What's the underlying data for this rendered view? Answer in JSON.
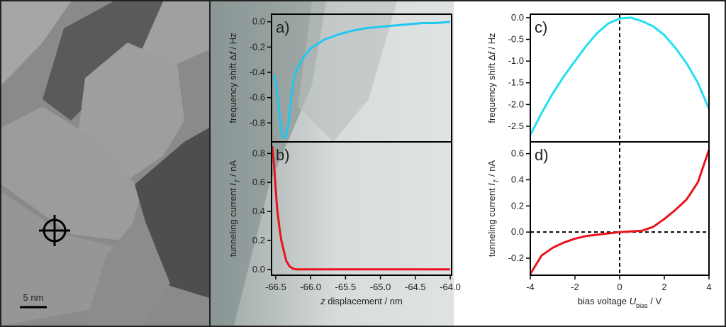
{
  "image": {
    "scale_label": "5 nm"
  },
  "chart_data": [
    {
      "type": "line",
      "panel_label": "a)",
      "ylabel": [
        "frequency shift  Δ",
        "f",
        " / Hz"
      ],
      "x": [
        -66.52,
        -66.48,
        -66.44,
        -66.4,
        -66.36,
        -66.32,
        -66.28,
        -66.24,
        -66.2,
        -66.1,
        -66.0,
        -65.8,
        -65.6,
        -65.4,
        -65.2,
        -65.0,
        -64.8,
        -64.6,
        -64.4,
        -64.2,
        -64.0
      ],
      "series": [
        {
          "color": "#22c6f0",
          "values": [
            -0.42,
            -0.55,
            -0.78,
            -0.91,
            -0.92,
            -0.82,
            -0.6,
            -0.45,
            -0.38,
            -0.28,
            -0.21,
            -0.14,
            -0.1,
            -0.07,
            -0.05,
            -0.04,
            -0.03,
            -0.02,
            -0.01,
            -0.01,
            0.0
          ]
        }
      ],
      "xlim": [
        -66.56,
        -63.98
      ],
      "ylim": [
        -0.95,
        0.06
      ],
      "yticks": [
        {
          "value": 0,
          "label": "0.0"
        },
        -0.2,
        -0.4,
        -0.6,
        -0.8
      ]
    },
    {
      "type": "line",
      "panel_label": "b)",
      "ylabel": [
        "tunneling current ",
        "I",
        "T",
        " / nA"
      ],
      "xlabel": [
        "z",
        " displacement / nm"
      ],
      "x": [
        -66.55,
        -66.52,
        -66.5,
        -66.48,
        -66.45,
        -66.42,
        -66.38,
        -66.35,
        -66.3,
        -66.25,
        -66.2,
        -66.0,
        -65.5,
        -65.0,
        -64.5,
        -64.0
      ],
      "series": [
        {
          "color": "#e8141c",
          "values": [
            0.85,
            0.7,
            0.55,
            0.42,
            0.3,
            0.2,
            0.12,
            0.06,
            0.02,
            0.005,
            0,
            0,
            0,
            0,
            0,
            0
          ]
        }
      ],
      "xlim": [
        -66.56,
        -63.98
      ],
      "ylim": [
        -0.04,
        0.88
      ],
      "xticks": [
        -66.5,
        {
          "value": -66,
          "label": "-66.0"
        },
        -65.5,
        {
          "value": -65,
          "label": "-65.0"
        },
        -64.5,
        {
          "value": -64,
          "label": "-64.0"
        }
      ],
      "yticks": [
        {
          "value": 0,
          "label": "0.0"
        },
        0.2,
        0.4,
        0.6,
        0.8
      ]
    },
    {
      "type": "line",
      "panel_label": "c)",
      "ylabel": [
        "frequency shift  Δ",
        "f",
        " / Hz"
      ],
      "x": [
        -4,
        -3.5,
        -3,
        -2.5,
        -2,
        -1.5,
        -1,
        -0.5,
        0,
        0.5,
        1,
        1.5,
        2,
        2.5,
        3,
        3.5,
        4
      ],
      "series": [
        {
          "color": "#22e0f0",
          "values": [
            -2.7,
            -2.2,
            -1.75,
            -1.35,
            -1.0,
            -0.65,
            -0.35,
            -0.13,
            -0.02,
            0,
            -0.08,
            -0.2,
            -0.4,
            -0.7,
            -1.05,
            -1.5,
            -2.1
          ]
        }
      ],
      "xlim": [
        -4,
        4
      ],
      "ylim": [
        -2.86,
        0.08
      ],
      "dashed_x": 0,
      "yticks": [
        {
          "value": 0,
          "label": "0.0"
        },
        -0.5,
        {
          "value": -1,
          "label": "-1.0"
        },
        -1.5,
        {
          "value": -2,
          "label": "-2.0"
        },
        -2.5
      ]
    },
    {
      "type": "line",
      "panel_label": "d)",
      "ylabel": [
        "tunneling current ",
        "I",
        "T",
        " / nA"
      ],
      "xlabel": [
        "bias voltage ",
        "U",
        "bias",
        " / V"
      ],
      "x": [
        -4,
        -3.5,
        -3,
        -2.5,
        -2,
        -1.5,
        -1,
        -0.5,
        0,
        0.5,
        1,
        1.5,
        2,
        2.5,
        3,
        3.5,
        4
      ],
      "series": [
        {
          "color": "#e8141c",
          "values": [
            -0.32,
            -0.18,
            -0.12,
            -0.08,
            -0.05,
            -0.03,
            -0.02,
            -0.01,
            0,
            0.005,
            0.01,
            0.04,
            0.1,
            0.17,
            0.25,
            0.38,
            0.63
          ]
        }
      ],
      "xlim": [
        -4,
        4
      ],
      "ylim": [
        -0.33,
        0.69
      ],
      "dashed_x": 0,
      "dashed_y": 0,
      "xticks": [
        -4,
        -2,
        0,
        2,
        4
      ],
      "yticks": [
        -0.2,
        {
          "value": 0,
          "label": "0.0"
        },
        0.2,
        0.4,
        0.6
      ]
    }
  ]
}
